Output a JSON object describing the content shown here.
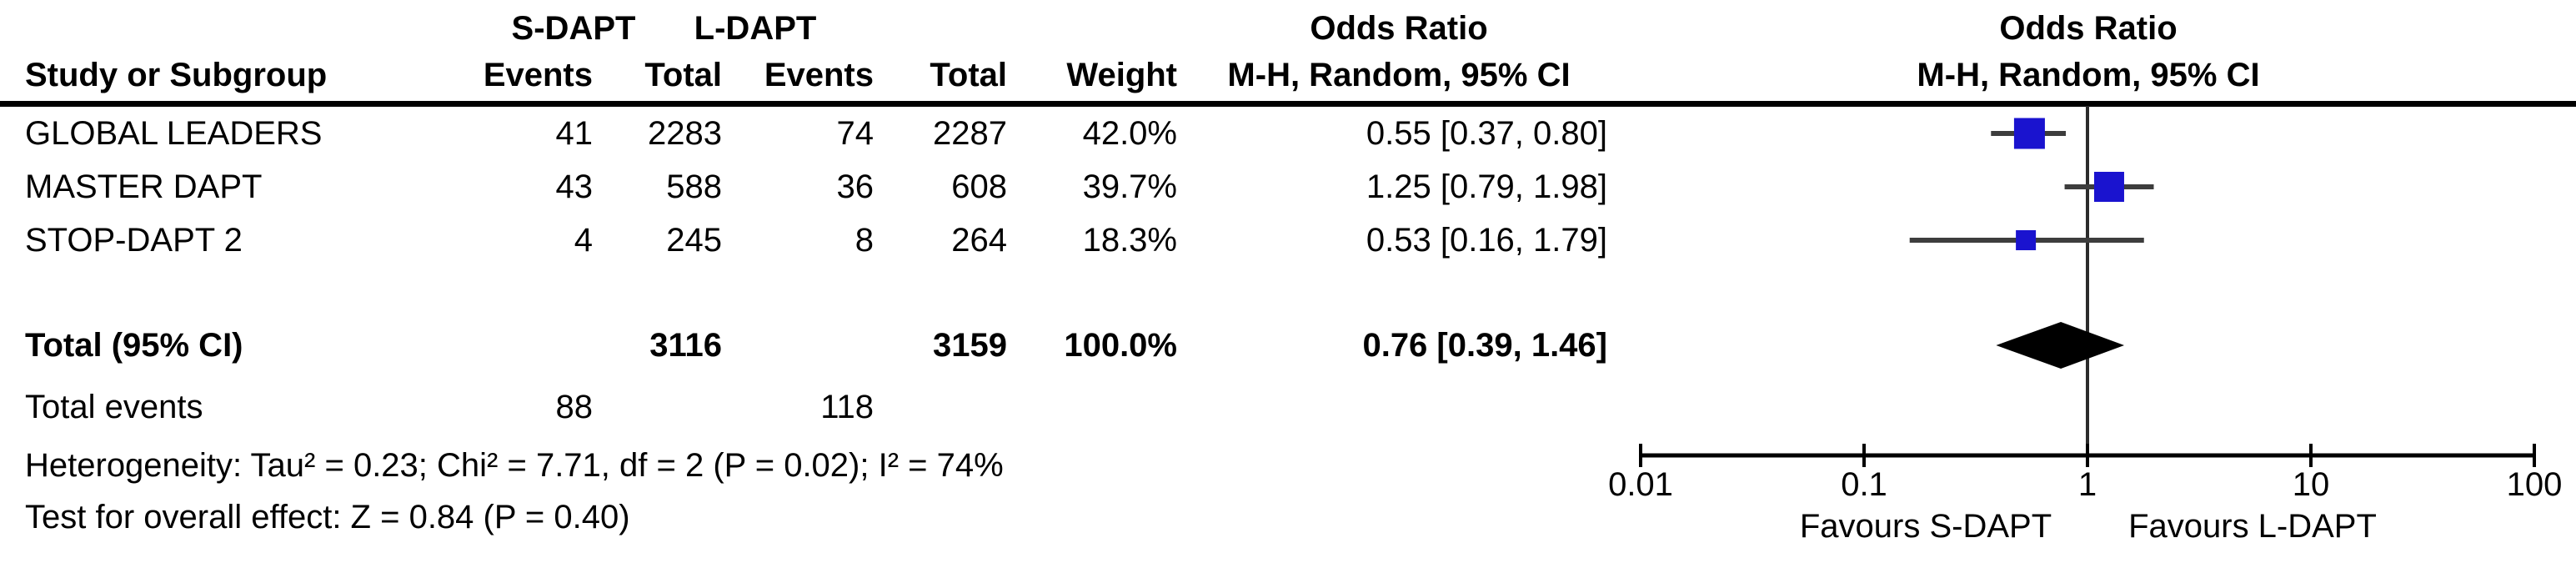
{
  "header": {
    "group1": "S-DAPT",
    "group2": "L-DAPT",
    "study_col": "Study or Subgroup",
    "events_col": "Events",
    "total_col": "Total",
    "weight_col": "Weight",
    "or_title": "Odds Ratio",
    "or_subtitle": "M-H, Random, 95% CI",
    "plot_title": "Odds Ratio",
    "plot_subtitle": "M-H, Random, 95% CI"
  },
  "rows": [
    {
      "study": "GLOBAL LEADERS",
      "e1": "41",
      "t1": "2283",
      "e2": "74",
      "t2": "2287",
      "weight": "42.0%",
      "or": "0.55 [0.37, 0.80]"
    },
    {
      "study": "MASTER DAPT",
      "e1": "43",
      "t1": "588",
      "e2": "36",
      "t2": "608",
      "weight": "39.7%",
      "or": "1.25 [0.79, 1.98]"
    },
    {
      "study": "STOP-DAPT 2",
      "e1": "4",
      "t1": "245",
      "e2": "8",
      "t2": "264",
      "weight": "18.3%",
      "or": "0.53 [0.16, 1.79]"
    }
  ],
  "total_row": {
    "label": "Total (95% CI)",
    "t1": "3116",
    "t2": "3159",
    "weight": "100.0%",
    "or": "0.76 [0.39, 1.46]"
  },
  "total_events_row": {
    "label": "Total events",
    "e1": "88",
    "e2": "118"
  },
  "footnotes": {
    "heterogeneity": "Heterogeneity: Tau² = 0.23; Chi² = 7.71, df = 2 (P = 0.02); I² = 74%",
    "overall_effect": "Test for overall effect: Z = 0.84 (P = 0.40)"
  },
  "plot": {
    "favours_left": "Favours S-DAPT",
    "favours_right": "Favours L-DAPT"
  },
  "chart_data": {
    "type": "forest",
    "effect_measure": "Odds Ratio",
    "method": "M-H, Random, 95% CI",
    "x_scale": "log",
    "x_range": [
      0.01,
      100
    ],
    "axis_ticks": [
      0.01,
      0.1,
      1,
      10,
      100
    ],
    "studies": [
      {
        "name": "GLOBAL LEADERS",
        "sdapt_events": 41,
        "sdapt_total": 2283,
        "ldapt_events": 74,
        "ldapt_total": 2287,
        "weight_pct": 42.0,
        "or": 0.55,
        "ci_low": 0.37,
        "ci_high": 0.8
      },
      {
        "name": "MASTER DAPT",
        "sdapt_events": 43,
        "sdapt_total": 588,
        "ldapt_events": 36,
        "ldapt_total": 608,
        "weight_pct": 39.7,
        "or": 1.25,
        "ci_low": 0.79,
        "ci_high": 1.98
      },
      {
        "name": "STOP-DAPT 2",
        "sdapt_events": 4,
        "sdapt_total": 245,
        "ldapt_events": 8,
        "ldapt_total": 264,
        "weight_pct": 18.3,
        "or": 0.53,
        "ci_low": 0.16,
        "ci_high": 1.79
      }
    ],
    "total": {
      "or": 0.76,
      "ci_low": 0.39,
      "ci_high": 1.46,
      "sdapt_events": 88,
      "sdapt_total": 3116,
      "ldapt_events": 118,
      "ldapt_total": 3159,
      "weight_pct": 100.0
    },
    "heterogeneity": {
      "tau2": 0.23,
      "chi2": 7.71,
      "df": 2,
      "p": 0.02,
      "i2_pct": 74
    },
    "overall_effect": {
      "z": 0.84,
      "p": 0.4
    },
    "colors": {
      "square": "#1A13CF",
      "ci_line": "#3d3d3d",
      "diamond": "#000000",
      "axis": "#000000",
      "null_line": "#2b2b2b"
    }
  }
}
